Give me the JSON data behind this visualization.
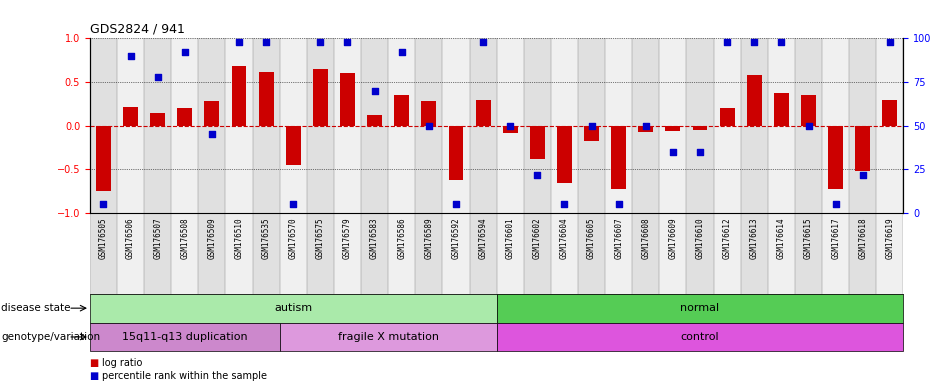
{
  "title": "GDS2824 / 941",
  "samples": [
    "GSM176505",
    "GSM176506",
    "GSM176507",
    "GSM176508",
    "GSM176509",
    "GSM176510",
    "GSM176535",
    "GSM176570",
    "GSM176575",
    "GSM176579",
    "GSM176583",
    "GSM176586",
    "GSM176589",
    "GSM176592",
    "GSM176594",
    "GSM176601",
    "GSM176602",
    "GSM176604",
    "GSM176605",
    "GSM176607",
    "GSM176608",
    "GSM176609",
    "GSM176610",
    "GSM176612",
    "GSM176613",
    "GSM176614",
    "GSM176615",
    "GSM176617",
    "GSM176618",
    "GSM176619"
  ],
  "log_ratio": [
    -0.75,
    0.22,
    0.15,
    0.2,
    0.28,
    0.68,
    0.62,
    -0.45,
    0.65,
    0.6,
    0.12,
    0.35,
    0.28,
    -0.62,
    0.3,
    -0.08,
    -0.38,
    -0.65,
    -0.18,
    -0.72,
    -0.07,
    -0.06,
    -0.05,
    0.2,
    0.58,
    0.38,
    0.35,
    -0.72,
    -0.52,
    0.3
  ],
  "percentile": [
    5,
    90,
    78,
    92,
    45,
    98,
    98,
    5,
    98,
    98,
    70,
    92,
    50,
    5,
    98,
    50,
    22,
    5,
    50,
    5,
    50,
    35,
    35,
    98,
    98,
    98,
    50,
    5,
    22,
    98
  ],
  "disease_groups": [
    {
      "label": "autism",
      "start": 0,
      "end": 14,
      "color": "#aaeaaa"
    },
    {
      "label": "normal",
      "start": 15,
      "end": 29,
      "color": "#55cc55"
    }
  ],
  "genotype_groups": [
    {
      "label": "15q11-q13 duplication",
      "start": 0,
      "end": 6,
      "color": "#cc88cc"
    },
    {
      "label": "fragile X mutation",
      "start": 7,
      "end": 14,
      "color": "#dd99dd"
    },
    {
      "label": "control",
      "start": 15,
      "end": 29,
      "color": "#dd55dd"
    }
  ],
  "bar_color": "#cc0000",
  "dot_color": "#0000cc",
  "zero_line_color": "#cc0000",
  "ylim": [
    -1.0,
    1.0
  ],
  "y2lim": [
    0,
    100
  ],
  "yticks": [
    -1.0,
    -0.5,
    0.0,
    0.5,
    1.0
  ],
  "y2ticks": [
    0,
    25,
    50,
    75,
    100
  ],
  "col_colors": [
    "#e0e0e0",
    "#f0f0f0"
  ],
  "legend_items": [
    {
      "label": "log ratio",
      "color": "#cc0000"
    },
    {
      "label": "percentile rank within the sample",
      "color": "#0000cc"
    }
  ]
}
